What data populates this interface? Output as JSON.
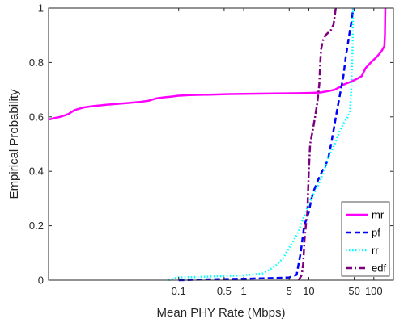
{
  "chart_data": {
    "type": "line",
    "title": "",
    "xlabel": "Mean PHY Rate (Mbps)",
    "ylabel": "Empirical Probability",
    "x_scale": "log",
    "xlim": [
      0.001,
      200
    ],
    "ylim": [
      0,
      1
    ],
    "grid": false,
    "legend_position": "bottom-right",
    "x_ticks": [
      {
        "value": 0.1,
        "label": "0.1"
      },
      {
        "value": 0.5,
        "label": "0.5"
      },
      {
        "value": 1,
        "label": "1"
      },
      {
        "value": 5,
        "label": "5"
      },
      {
        "value": 10,
        "label": "10"
      },
      {
        "value": 50,
        "label": "50"
      },
      {
        "value": 100,
        "label": "100"
      }
    ],
    "y_ticks": [
      {
        "value": 0,
        "label": "0"
      },
      {
        "value": 0.2,
        "label": "0.2"
      },
      {
        "value": 0.4,
        "label": "0.4"
      },
      {
        "value": 0.6,
        "label": "0.6"
      },
      {
        "value": 0.8,
        "label": "0.8"
      },
      {
        "value": 1,
        "label": "1"
      }
    ],
    "series": [
      {
        "name": "mr",
        "color": "#ff00ff",
        "style": "solid",
        "points": [
          [
            0.001,
            0.59
          ],
          [
            0.0012,
            0.595
          ],
          [
            0.0015,
            0.6
          ],
          [
            0.002,
            0.61
          ],
          [
            0.0025,
            0.625
          ],
          [
            0.0035,
            0.635
          ],
          [
            0.005,
            0.64
          ],
          [
            0.008,
            0.645
          ],
          [
            0.015,
            0.65
          ],
          [
            0.025,
            0.655
          ],
          [
            0.035,
            0.66
          ],
          [
            0.045,
            0.668
          ],
          [
            0.06,
            0.672
          ],
          [
            0.08,
            0.675
          ],
          [
            0.1,
            0.678
          ],
          [
            0.15,
            0.68
          ],
          [
            0.3,
            0.682
          ],
          [
            0.6,
            0.684
          ],
          [
            1,
            0.685
          ],
          [
            3,
            0.686
          ],
          [
            6,
            0.687
          ],
          [
            10,
            0.688
          ],
          [
            15,
            0.69
          ],
          [
            20,
            0.695
          ],
          [
            25,
            0.7
          ],
          [
            30,
            0.71
          ],
          [
            35,
            0.72
          ],
          [
            45,
            0.73
          ],
          [
            55,
            0.74
          ],
          [
            65,
            0.75
          ],
          [
            75,
            0.78
          ],
          [
            90,
            0.8
          ],
          [
            110,
            0.82
          ],
          [
            130,
            0.84
          ],
          [
            145,
            0.86
          ],
          [
            148,
            0.9
          ],
          [
            150,
            1.0
          ]
        ]
      },
      {
        "name": "pf",
        "color": "#0000ff",
        "style": "dashed",
        "points": [
          [
            0.1,
            0.0
          ],
          [
            0.3,
            0.003
          ],
          [
            1,
            0.005
          ],
          [
            3,
            0.008
          ],
          [
            5,
            0.01
          ],
          [
            6.5,
            0.02
          ],
          [
            7.5,
            0.1
          ],
          [
            8.5,
            0.2
          ],
          [
            10,
            0.25
          ],
          [
            11,
            0.3
          ],
          [
            12,
            0.33
          ],
          [
            14,
            0.37
          ],
          [
            16,
            0.4
          ],
          [
            18,
            0.42
          ],
          [
            20,
            0.45
          ],
          [
            22,
            0.5
          ],
          [
            24,
            0.55
          ],
          [
            27,
            0.62
          ],
          [
            30,
            0.68
          ],
          [
            34,
            0.75
          ],
          [
            37,
            0.82
          ],
          [
            40,
            0.87
          ],
          [
            43,
            0.92
          ],
          [
            46,
            0.96
          ],
          [
            48,
            1.0
          ]
        ]
      },
      {
        "name": "rr",
        "color": "#00ffff",
        "style": "dotted",
        "points": [
          [
            0.07,
            0.0
          ],
          [
            0.08,
            0.005
          ],
          [
            0.1,
            0.01
          ],
          [
            0.2,
            0.012
          ],
          [
            0.5,
            0.015
          ],
          [
            1,
            0.018
          ],
          [
            2,
            0.025
          ],
          [
            3,
            0.05
          ],
          [
            4,
            0.08
          ],
          [
            5,
            0.12
          ],
          [
            6,
            0.15
          ],
          [
            7,
            0.18
          ],
          [
            8,
            0.22
          ],
          [
            9,
            0.25
          ],
          [
            10,
            0.28
          ],
          [
            12,
            0.32
          ],
          [
            14,
            0.35
          ],
          [
            17,
            0.4
          ],
          [
            20,
            0.45
          ],
          [
            25,
            0.5
          ],
          [
            30,
            0.55
          ],
          [
            35,
            0.58
          ],
          [
            40,
            0.6
          ],
          [
            43,
            0.62
          ],
          [
            45,
            0.7
          ],
          [
            47,
            0.85
          ],
          [
            48,
            1.0
          ]
        ]
      },
      {
        "name": "edf",
        "color": "#7f007f",
        "style": "dashdot",
        "points": [
          [
            7,
            0.0
          ],
          [
            7.8,
            0.02
          ],
          [
            8.2,
            0.06
          ],
          [
            8.6,
            0.15
          ],
          [
            9,
            0.2
          ],
          [
            9.5,
            0.25
          ],
          [
            10,
            0.4
          ],
          [
            10.5,
            0.5
          ],
          [
            11.5,
            0.55
          ],
          [
            12.5,
            0.6
          ],
          [
            13.5,
            0.65
          ],
          [
            14.5,
            0.72
          ],
          [
            15,
            0.8
          ],
          [
            15.5,
            0.85
          ],
          [
            16.5,
            0.88
          ],
          [
            18,
            0.9
          ],
          [
            20,
            0.91
          ],
          [
            22,
            0.92
          ],
          [
            24,
            0.94
          ],
          [
            25,
            0.97
          ],
          [
            26,
            1.0
          ]
        ]
      }
    ]
  }
}
